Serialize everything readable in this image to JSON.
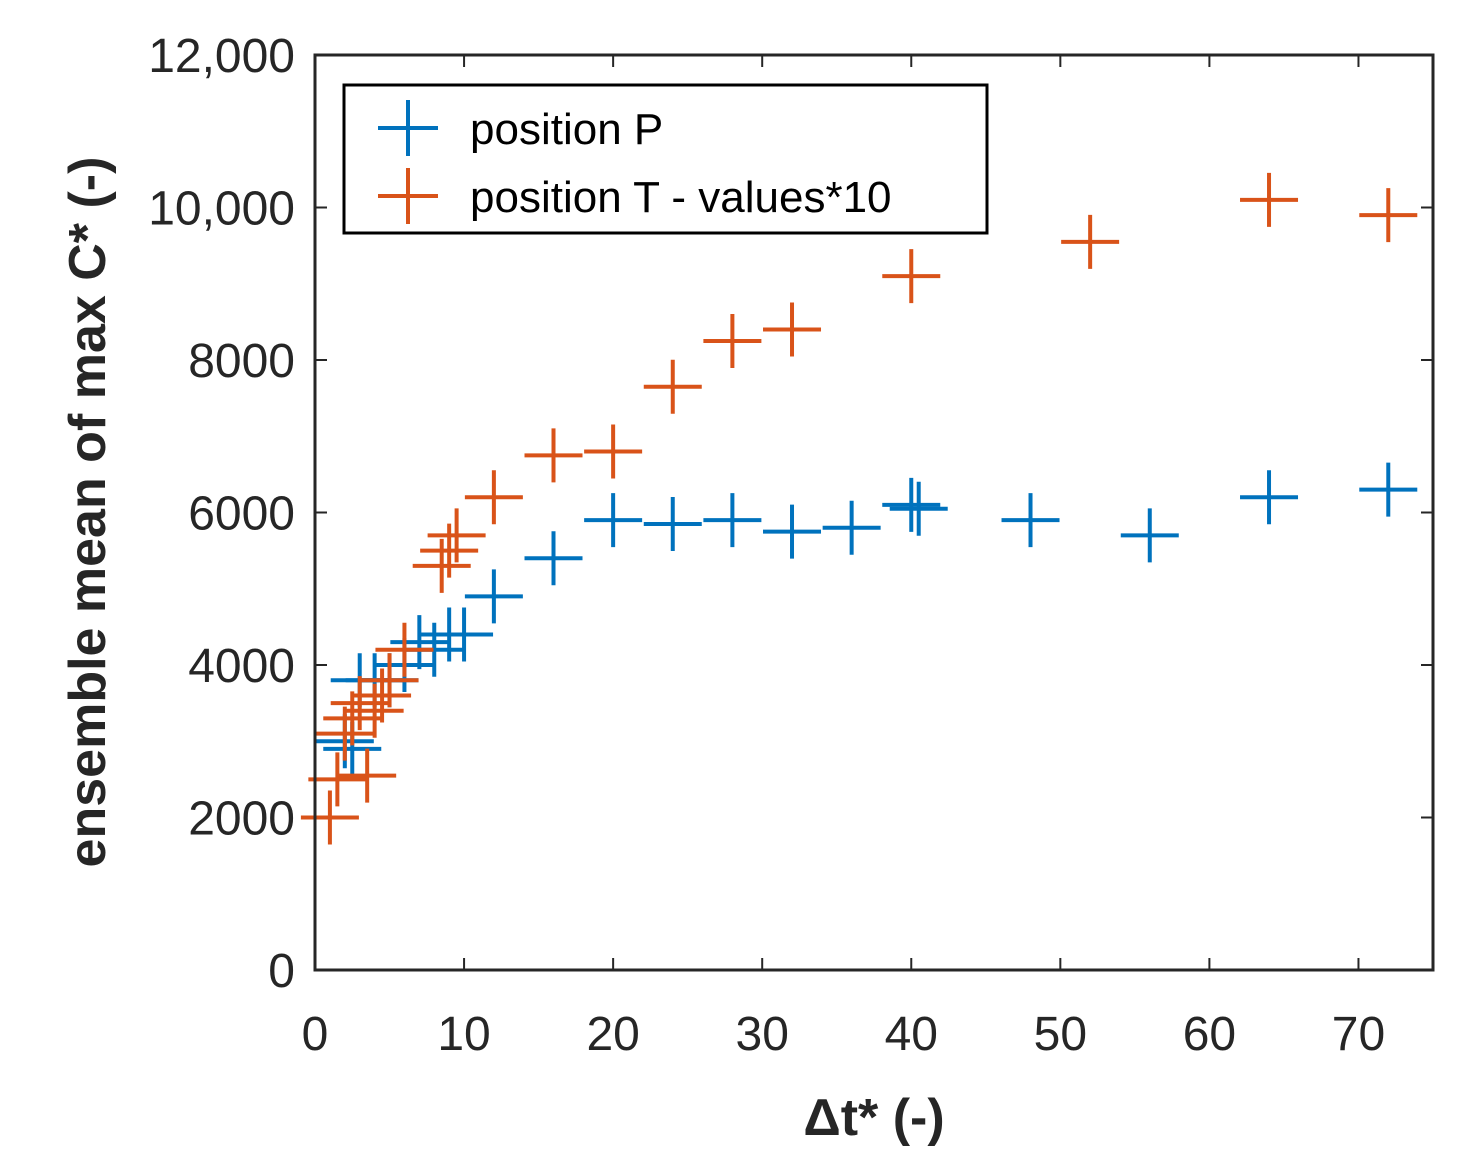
{
  "chart_data": {
    "type": "scatter",
    "title": "",
    "xlabel": "Δt* (-)",
    "ylabel": "ensemble mean of max C* (-)",
    "xlim": [
      0,
      75
    ],
    "ylim": [
      0,
      12000
    ],
    "xticks": [
      0,
      10,
      20,
      30,
      40,
      50,
      60,
      70
    ],
    "yticks": [
      0,
      2000,
      4000,
      6000,
      8000,
      10000,
      12000
    ],
    "xtick_labels": [
      "0",
      "10",
      "20",
      "30",
      "40",
      "50",
      "60",
      "70"
    ],
    "ytick_labels": [
      "0",
      "2000",
      "4000",
      "6000",
      "8000",
      "10,000",
      "12,000"
    ],
    "grid": false,
    "legend_position": "top-left",
    "marker": "plus",
    "series": [
      {
        "name": "position P",
        "color": "#0072BD",
        "x": [
          2.0,
          2.5,
          3.0,
          4.0,
          5.0,
          6.0,
          7.0,
          8.0,
          9.0,
          10.0,
          12.0,
          16.0,
          20.0,
          24.0,
          28.0,
          32.0,
          36.0,
          40.0,
          40.5,
          48.0,
          56.0,
          64.0,
          72.0
        ],
        "y": [
          3000,
          2900,
          3800,
          3800,
          3800,
          4000,
          4300,
          4200,
          4400,
          4400,
          4900,
          5400,
          5900,
          5850,
          5900,
          5750,
          5800,
          6100,
          6050,
          5900,
          5700,
          6200,
          6300
        ]
      },
      {
        "name": "position T - values*10",
        "color": "#D95319",
        "x": [
          1.0,
          1.5,
          2.0,
          2.5,
          3.0,
          3.5,
          4.0,
          4.5,
          5.0,
          6.0,
          8.5,
          9.0,
          9.5,
          12.0,
          16.0,
          20.0,
          24.0,
          28.0,
          32.0,
          40.0,
          52.0,
          64.0,
          72.0
        ],
        "y": [
          2000,
          2500,
          3100,
          3300,
          3500,
          2550,
          3400,
          3600,
          3800,
          4200,
          5300,
          5500,
          5700,
          6200,
          6750,
          6800,
          7650,
          8250,
          8400,
          9100,
          9550,
          10100,
          9900
        ]
      }
    ]
  }
}
